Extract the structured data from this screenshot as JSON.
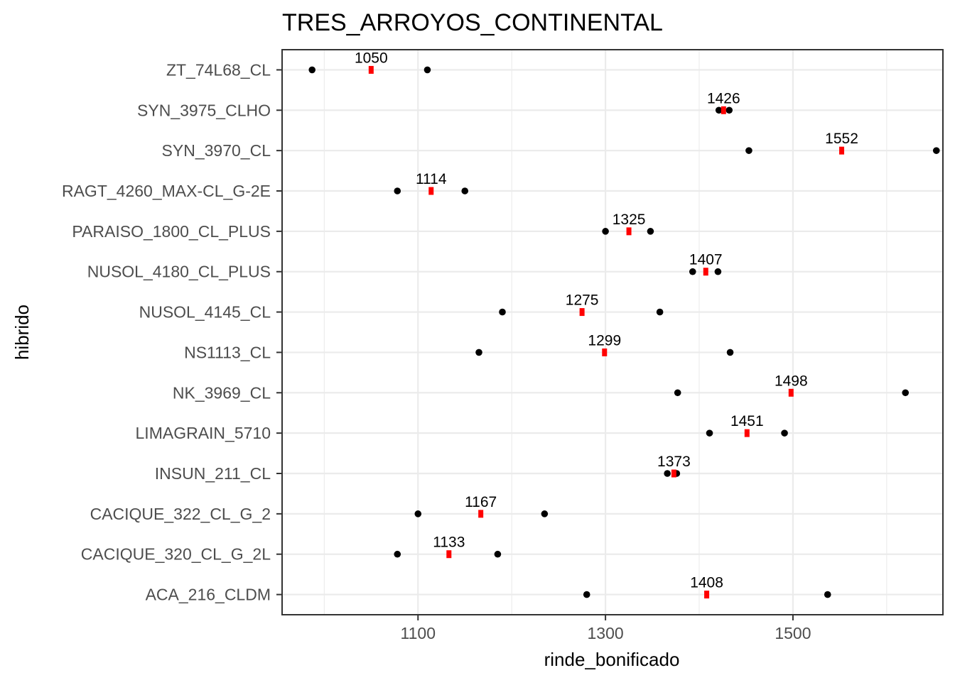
{
  "chart_data": {
    "type": "scatter",
    "title": "TRES_ARROYOS_CONTINENTAL",
    "xlabel": "rinde_bonificado",
    "ylabel": "hibrido",
    "xlim": [
      955,
      1660
    ],
    "x_ticks": [
      1100,
      1300,
      1500
    ],
    "x_tick_labels": [
      "1100",
      "1300",
      "1500"
    ],
    "grid": true,
    "categories": [
      "ACA_216_CLDM",
      "CACIQUE_320_CL_G_2L",
      "CACIQUE_322_CL_G_2",
      "INSUN_211_CL",
      "LIMAGRAIN_5710",
      "NK_3969_CL",
      "NS1113_CL",
      "NUSOL_4145_CL",
      "NUSOL_4180_CL_PLUS",
      "PARAISO_1800_CL_PLUS",
      "RAGT_4260_MAX-CL_G-2E",
      "SYN_3970_CL",
      "SYN_3975_CLHO",
      "ZT_74L68_CL"
    ],
    "series": [
      {
        "marker": "point",
        "color": "#000000",
        "values": [
          [
            1280,
            1537
          ],
          [
            1078,
            1185
          ],
          [
            1100,
            1235
          ],
          [
            1366,
            1376
          ],
          [
            1411,
            1491
          ],
          [
            1377,
            1620
          ],
          [
            1165,
            1433
          ],
          [
            1190,
            1358
          ],
          [
            1393,
            1420
          ],
          [
            1300,
            1348
          ],
          [
            1078,
            1150
          ],
          [
            1453,
            1653
          ],
          [
            1421,
            1432
          ],
          [
            987,
            1110
          ]
        ]
      },
      {
        "marker": "mean",
        "color": "#ff0000",
        "values": [
          1408,
          1133,
          1167,
          1373,
          1451,
          1498,
          1299,
          1275,
          1407,
          1325,
          1114,
          1552,
          1426,
          1050
        ],
        "labels": [
          "1408",
          "1133",
          "1167",
          "1373",
          "1451",
          "1498",
          "1299",
          "1275",
          "1407",
          "1325",
          "1114",
          "1552",
          "1426",
          "1050"
        ]
      }
    ]
  }
}
